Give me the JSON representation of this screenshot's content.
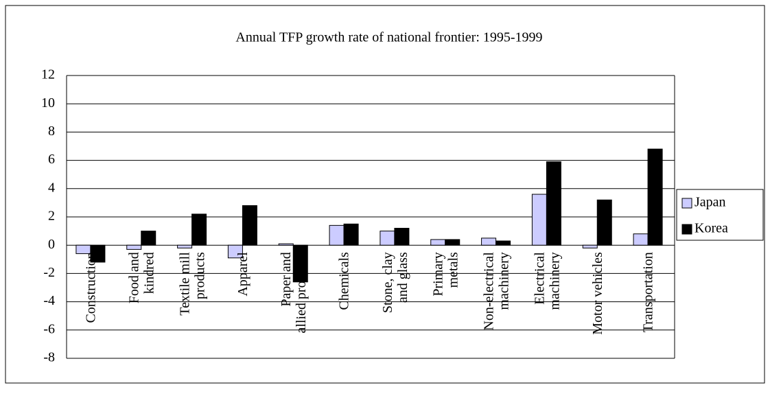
{
  "chart_data": {
    "type": "bar",
    "title": "Annual TFP growth rate of national frontier: 1995-1999",
    "categories": [
      "Construction",
      "Food and\nkindred",
      "Textile mill\nproducts",
      "Apparel",
      "Paper and\nallied products",
      "Chemicals",
      "Stone, clay\nand glass",
      "Primary\nmetals",
      "Non-electrical\nmachinery",
      "Electrical\nmachinery",
      "Motor vehicles",
      "Transportation"
    ],
    "series": [
      {
        "name": "Japan",
        "color": "#ccccff",
        "values": [
          -0.6,
          -0.3,
          -0.2,
          -0.9,
          0.1,
          1.4,
          1.0,
          0.4,
          0.5,
          3.6,
          -0.2,
          0.8
        ]
      },
      {
        "name": "Korea",
        "color": "#000000",
        "values": [
          -1.2,
          1.0,
          2.2,
          2.8,
          -2.6,
          1.5,
          1.2,
          0.4,
          0.3,
          5.9,
          3.2,
          6.8
        ]
      }
    ],
    "ylim": [
      -8,
      12
    ],
    "yticks": [
      -8,
      -6,
      -4,
      -2,
      0,
      2,
      4,
      6,
      8,
      10,
      12
    ],
    "grid": true,
    "legend": "right"
  }
}
